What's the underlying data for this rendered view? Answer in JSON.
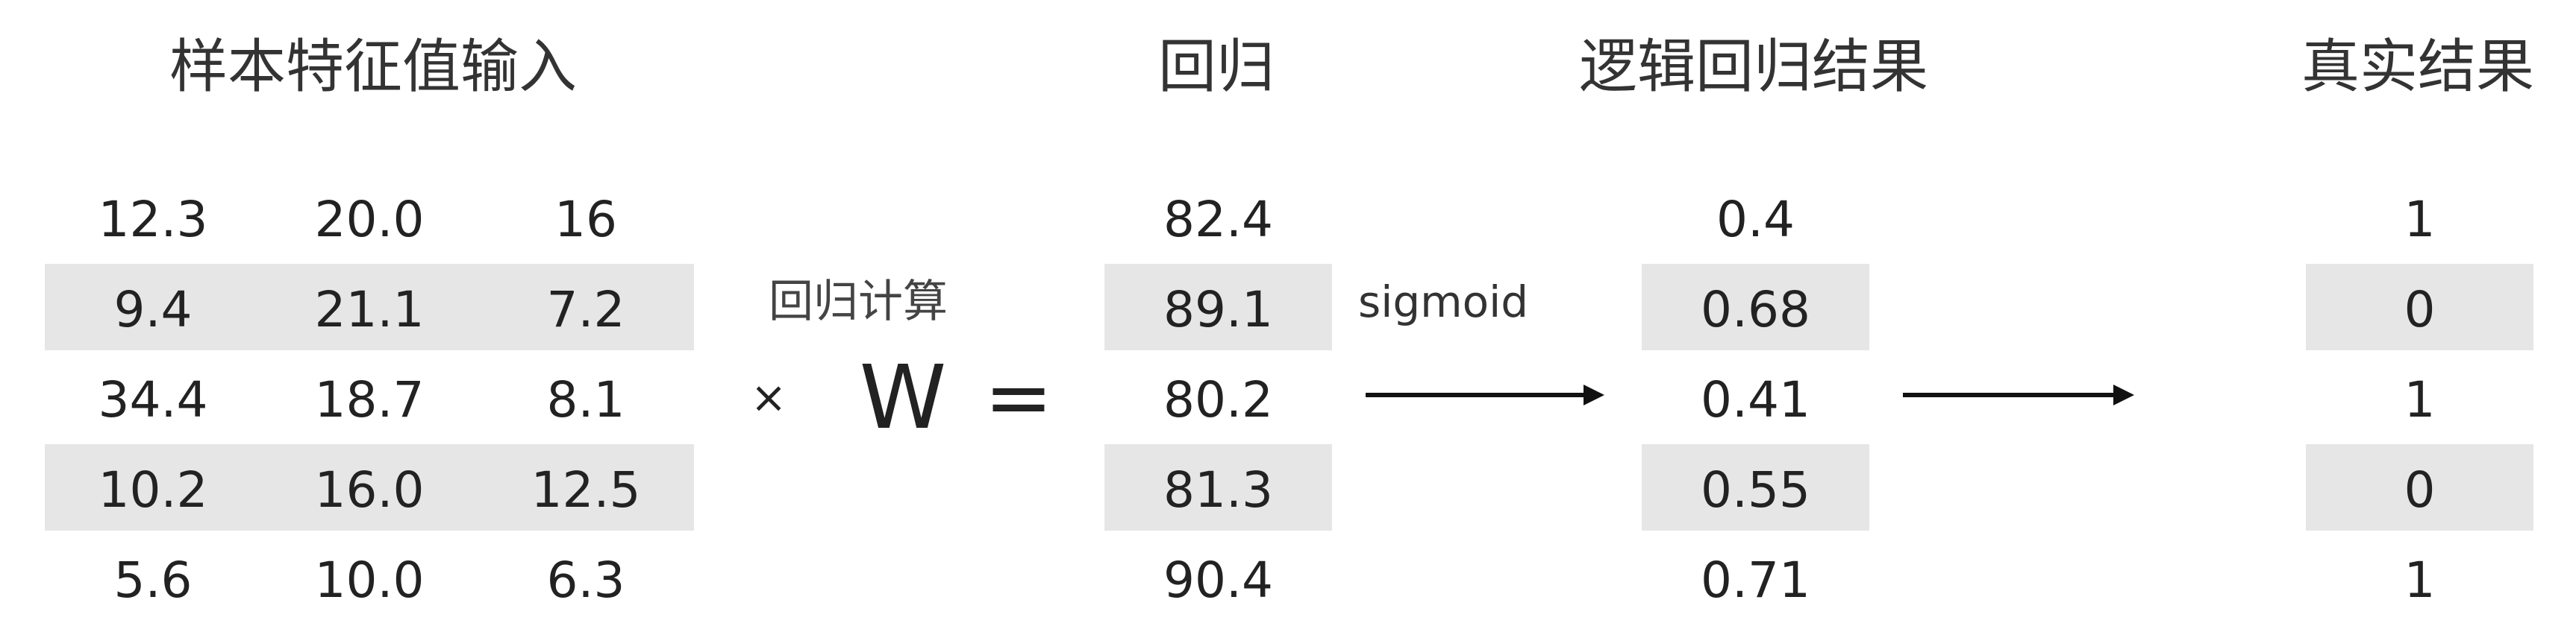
{
  "headers": {
    "input": "样本特征值输入",
    "regression": "回归",
    "logistic": "逻辑回归结果",
    "truth": "真实结果"
  },
  "input_rows": [
    [
      "12.3",
      "20.0",
      "16"
    ],
    [
      "9.4",
      "21.1",
      "7.2"
    ],
    [
      "34.4",
      "18.7",
      "8.1"
    ],
    [
      "10.2",
      "16.0",
      "12.5"
    ],
    [
      "5.6",
      "10.0",
      "6.3"
    ]
  ],
  "regression_values": [
    "82.4",
    "89.1",
    "80.2",
    "81.3",
    "90.4"
  ],
  "logistic_values": [
    "0.4",
    "0.68",
    "0.41",
    "0.55",
    "0.71"
  ],
  "truth_values": [
    "1",
    "0",
    "1",
    "0",
    "1"
  ],
  "calc": {
    "label": "回归计算",
    "times": "×",
    "weight": "W",
    "equals": "="
  },
  "sigmoid_label": "sigmoid",
  "colors": {
    "band": "#e6e6e6",
    "text": "#222222",
    "arrow": "#111111"
  }
}
